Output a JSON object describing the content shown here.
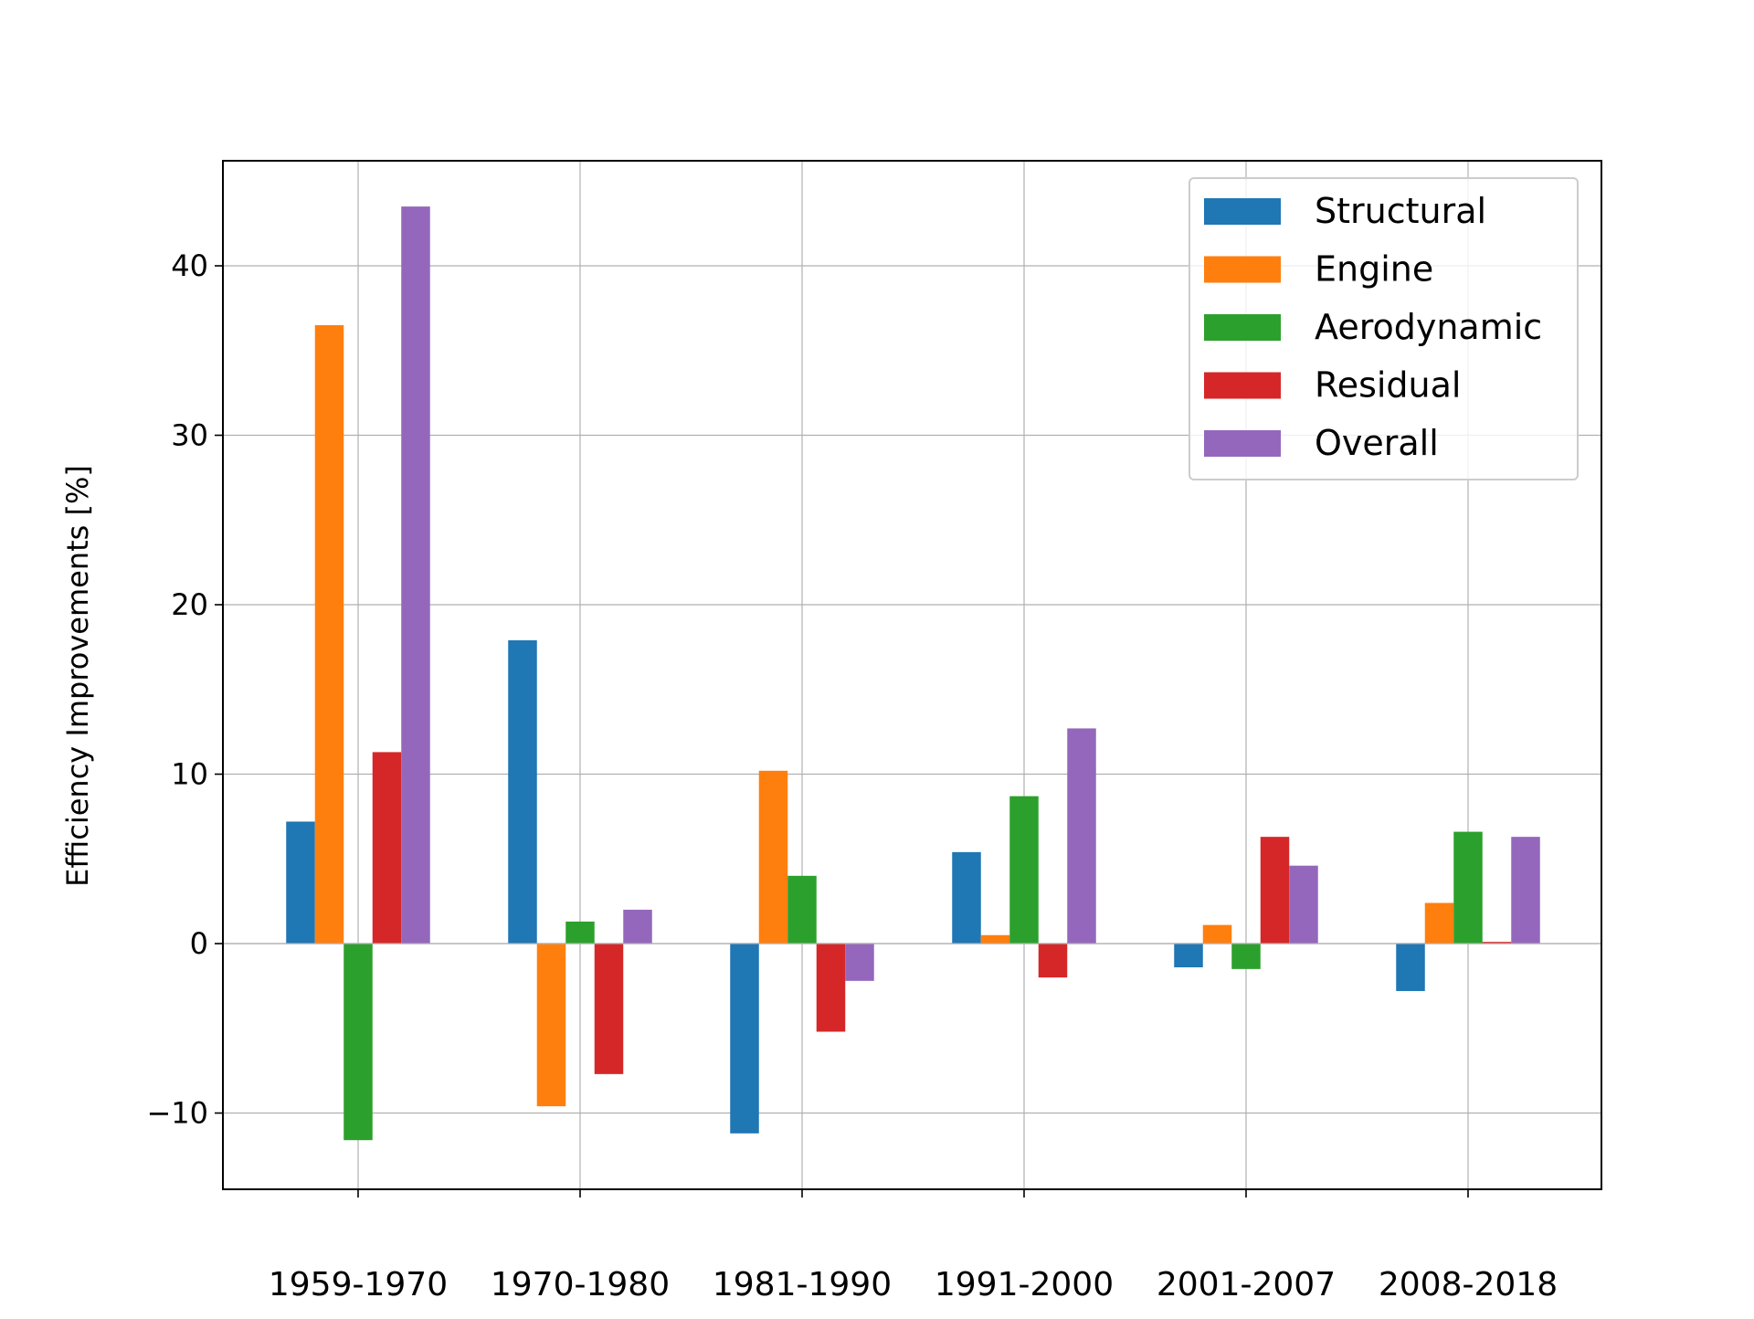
{
  "chart_data": {
    "type": "bar",
    "title": "",
    "xlabel": "",
    "ylabel": "Efficiency Improvements [%]",
    "categories": [
      "1959-1970",
      "1970-1980",
      "1981-1990",
      "1991-2000",
      "2001-2007",
      "2008-2018"
    ],
    "series": [
      {
        "name": "Structural",
        "color": "#1f77b4",
        "values": [
          7.2,
          17.9,
          -11.2,
          5.4,
          -1.4,
          -2.8
        ]
      },
      {
        "name": "Engine",
        "color": "#ff7f0e",
        "values": [
          36.5,
          -9.6,
          10.2,
          0.5,
          1.1,
          2.4
        ]
      },
      {
        "name": "Aerodynamic",
        "color": "#2ca02c",
        "values": [
          -11.6,
          1.3,
          4.0,
          8.7,
          -1.5,
          6.6
        ]
      },
      {
        "name": "Residual",
        "color": "#d62728",
        "values": [
          11.3,
          -7.7,
          -5.2,
          -2.0,
          6.3,
          0.1
        ]
      },
      {
        "name": "Overall",
        "color": "#9467bd",
        "values": [
          43.5,
          2.0,
          -2.2,
          12.7,
          4.6,
          6.3
        ]
      }
    ],
    "ylim": [
      -14.5,
      46.2
    ],
    "yticks": [
      -10,
      0,
      10,
      20,
      30,
      40
    ],
    "ytick_labels": [
      "−10",
      "0",
      "10",
      "20",
      "30",
      "40"
    ],
    "grid": true,
    "legend_position": "top-right"
  }
}
